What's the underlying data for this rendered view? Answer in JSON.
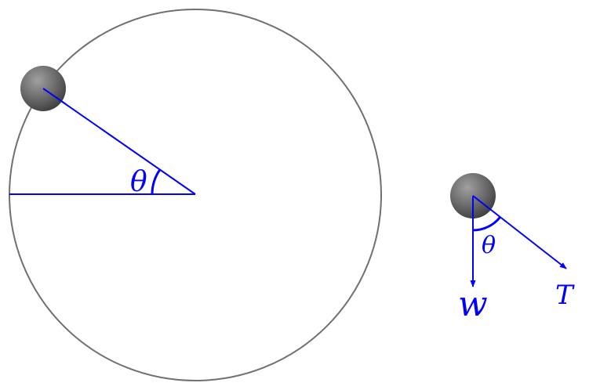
{
  "colors": {
    "vector": "#0000ff",
    "circle": "#707070",
    "ball_light": "#a0a0a0",
    "ball_dark": "#3a3a3a",
    "background": "#ffffff"
  },
  "labels": {
    "angle_left": "θ",
    "angle_right": "θ",
    "weight": "w",
    "tension": "T"
  }
}
